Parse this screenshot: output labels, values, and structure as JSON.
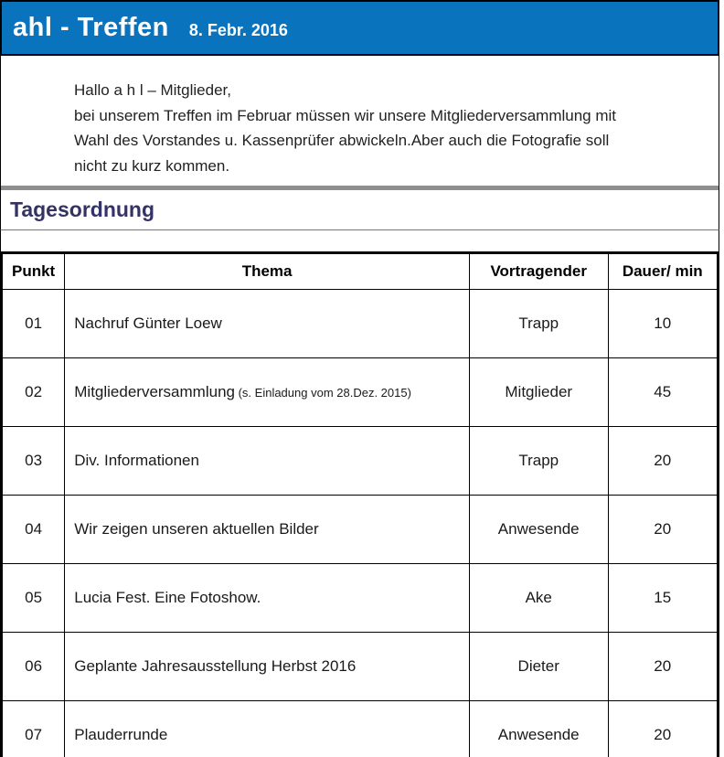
{
  "header": {
    "title": "ahl - Treffen",
    "date": "8. Febr. 2016"
  },
  "intro": {
    "lines": [
      "Hallo a h l – Mitglieder,",
      "bei unserem Treffen im Februar müssen wir unsere Mitgliederversammlung mit",
      "Wahl des Vorstandes u. Kassenprüfer abwickeln.Aber auch die Fotografie soll",
      "nicht zu kurz kommen."
    ]
  },
  "section": {
    "title": "Tagesordnung"
  },
  "agenda": {
    "columns": [
      "Punkt",
      "Thema",
      "Vortragender",
      "Dauer/ min"
    ],
    "rows": [
      {
        "punkt": "01",
        "thema": "Nachruf Günter Loew",
        "thema_note": "",
        "vortragender": "Trapp",
        "dauer": "10"
      },
      {
        "punkt": "02",
        "thema": "Mitgliederversammlung",
        "thema_note": " (s. Einladung vom 28.Dez. 2015)",
        "vortragender": "Mitglieder",
        "dauer": "45"
      },
      {
        "punkt": "03",
        "thema": "Div. Informationen",
        "thema_note": "",
        "vortragender": "Trapp",
        "dauer": "20"
      },
      {
        "punkt": "04",
        "thema": "Wir zeigen unseren aktuellen Bilder",
        "thema_note": "",
        "vortragender": "Anwesende",
        "dauer": "20"
      },
      {
        "punkt": "05",
        "thema": "Lucia Fest. Eine Fotoshow.",
        "thema_note": "",
        "vortragender": "Ake",
        "dauer": "15"
      },
      {
        "punkt": "06",
        "thema": "Geplante Jahresausstellung Herbst 2016",
        "thema_note": "",
        "vortragender": "Dieter",
        "dauer": "20"
      },
      {
        "punkt": "07",
        "thema": "Plauderrunde",
        "thema_note": "",
        "vortragender": "Anwesende",
        "dauer": "20"
      }
    ]
  },
  "colors": {
    "header_bg": "#0a73bd",
    "header_text": "#ffffff",
    "section_title": "#333366",
    "divider": "#8f8f8f",
    "border": "#000000"
  }
}
